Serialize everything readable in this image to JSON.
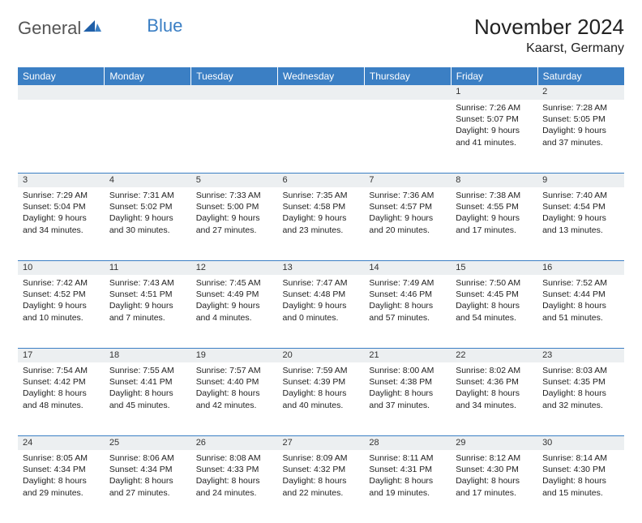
{
  "logo": {
    "part1": "General",
    "part2": "Blue"
  },
  "title": "November 2024",
  "location": "Kaarst, Germany",
  "weekdays": [
    "Sunday",
    "Monday",
    "Tuesday",
    "Wednesday",
    "Thursday",
    "Friday",
    "Saturday"
  ],
  "colors": {
    "header_bg": "#3b7fc4",
    "daynum_bg": "#eceff1",
    "rule": "#3b7fc4",
    "text": "#222222",
    "background": "#ffffff"
  },
  "weeks": [
    {
      "nums": [
        "",
        "",
        "",
        "",
        "",
        "1",
        "2"
      ],
      "cells": [
        {},
        {},
        {},
        {},
        {},
        {
          "sunrise": "Sunrise: 7:26 AM",
          "sunset": "Sunset: 5:07 PM",
          "daylight": "Daylight: 9 hours and 41 minutes."
        },
        {
          "sunrise": "Sunrise: 7:28 AM",
          "sunset": "Sunset: 5:05 PM",
          "daylight": "Daylight: 9 hours and 37 minutes."
        }
      ]
    },
    {
      "nums": [
        "3",
        "4",
        "5",
        "6",
        "7",
        "8",
        "9"
      ],
      "cells": [
        {
          "sunrise": "Sunrise: 7:29 AM",
          "sunset": "Sunset: 5:04 PM",
          "daylight": "Daylight: 9 hours and 34 minutes."
        },
        {
          "sunrise": "Sunrise: 7:31 AM",
          "sunset": "Sunset: 5:02 PM",
          "daylight": "Daylight: 9 hours and 30 minutes."
        },
        {
          "sunrise": "Sunrise: 7:33 AM",
          "sunset": "Sunset: 5:00 PM",
          "daylight": "Daylight: 9 hours and 27 minutes."
        },
        {
          "sunrise": "Sunrise: 7:35 AM",
          "sunset": "Sunset: 4:58 PM",
          "daylight": "Daylight: 9 hours and 23 minutes."
        },
        {
          "sunrise": "Sunrise: 7:36 AM",
          "sunset": "Sunset: 4:57 PM",
          "daylight": "Daylight: 9 hours and 20 minutes."
        },
        {
          "sunrise": "Sunrise: 7:38 AM",
          "sunset": "Sunset: 4:55 PM",
          "daylight": "Daylight: 9 hours and 17 minutes."
        },
        {
          "sunrise": "Sunrise: 7:40 AM",
          "sunset": "Sunset: 4:54 PM",
          "daylight": "Daylight: 9 hours and 13 minutes."
        }
      ]
    },
    {
      "nums": [
        "10",
        "11",
        "12",
        "13",
        "14",
        "15",
        "16"
      ],
      "cells": [
        {
          "sunrise": "Sunrise: 7:42 AM",
          "sunset": "Sunset: 4:52 PM",
          "daylight": "Daylight: 9 hours and 10 minutes."
        },
        {
          "sunrise": "Sunrise: 7:43 AM",
          "sunset": "Sunset: 4:51 PM",
          "daylight": "Daylight: 9 hours and 7 minutes."
        },
        {
          "sunrise": "Sunrise: 7:45 AM",
          "sunset": "Sunset: 4:49 PM",
          "daylight": "Daylight: 9 hours and 4 minutes."
        },
        {
          "sunrise": "Sunrise: 7:47 AM",
          "sunset": "Sunset: 4:48 PM",
          "daylight": "Daylight: 9 hours and 0 minutes."
        },
        {
          "sunrise": "Sunrise: 7:49 AM",
          "sunset": "Sunset: 4:46 PM",
          "daylight": "Daylight: 8 hours and 57 minutes."
        },
        {
          "sunrise": "Sunrise: 7:50 AM",
          "sunset": "Sunset: 4:45 PM",
          "daylight": "Daylight: 8 hours and 54 minutes."
        },
        {
          "sunrise": "Sunrise: 7:52 AM",
          "sunset": "Sunset: 4:44 PM",
          "daylight": "Daylight: 8 hours and 51 minutes."
        }
      ]
    },
    {
      "nums": [
        "17",
        "18",
        "19",
        "20",
        "21",
        "22",
        "23"
      ],
      "cells": [
        {
          "sunrise": "Sunrise: 7:54 AM",
          "sunset": "Sunset: 4:42 PM",
          "daylight": "Daylight: 8 hours and 48 minutes."
        },
        {
          "sunrise": "Sunrise: 7:55 AM",
          "sunset": "Sunset: 4:41 PM",
          "daylight": "Daylight: 8 hours and 45 minutes."
        },
        {
          "sunrise": "Sunrise: 7:57 AM",
          "sunset": "Sunset: 4:40 PM",
          "daylight": "Daylight: 8 hours and 42 minutes."
        },
        {
          "sunrise": "Sunrise: 7:59 AM",
          "sunset": "Sunset: 4:39 PM",
          "daylight": "Daylight: 8 hours and 40 minutes."
        },
        {
          "sunrise": "Sunrise: 8:00 AM",
          "sunset": "Sunset: 4:38 PM",
          "daylight": "Daylight: 8 hours and 37 minutes."
        },
        {
          "sunrise": "Sunrise: 8:02 AM",
          "sunset": "Sunset: 4:36 PM",
          "daylight": "Daylight: 8 hours and 34 minutes."
        },
        {
          "sunrise": "Sunrise: 8:03 AM",
          "sunset": "Sunset: 4:35 PM",
          "daylight": "Daylight: 8 hours and 32 minutes."
        }
      ]
    },
    {
      "nums": [
        "24",
        "25",
        "26",
        "27",
        "28",
        "29",
        "30"
      ],
      "cells": [
        {
          "sunrise": "Sunrise: 8:05 AM",
          "sunset": "Sunset: 4:34 PM",
          "daylight": "Daylight: 8 hours and 29 minutes."
        },
        {
          "sunrise": "Sunrise: 8:06 AM",
          "sunset": "Sunset: 4:34 PM",
          "daylight": "Daylight: 8 hours and 27 minutes."
        },
        {
          "sunrise": "Sunrise: 8:08 AM",
          "sunset": "Sunset: 4:33 PM",
          "daylight": "Daylight: 8 hours and 24 minutes."
        },
        {
          "sunrise": "Sunrise: 8:09 AM",
          "sunset": "Sunset: 4:32 PM",
          "daylight": "Daylight: 8 hours and 22 minutes."
        },
        {
          "sunrise": "Sunrise: 8:11 AM",
          "sunset": "Sunset: 4:31 PM",
          "daylight": "Daylight: 8 hours and 19 minutes."
        },
        {
          "sunrise": "Sunrise: 8:12 AM",
          "sunset": "Sunset: 4:30 PM",
          "daylight": "Daylight: 8 hours and 17 minutes."
        },
        {
          "sunrise": "Sunrise: 8:14 AM",
          "sunset": "Sunset: 4:30 PM",
          "daylight": "Daylight: 8 hours and 15 minutes."
        }
      ]
    }
  ]
}
